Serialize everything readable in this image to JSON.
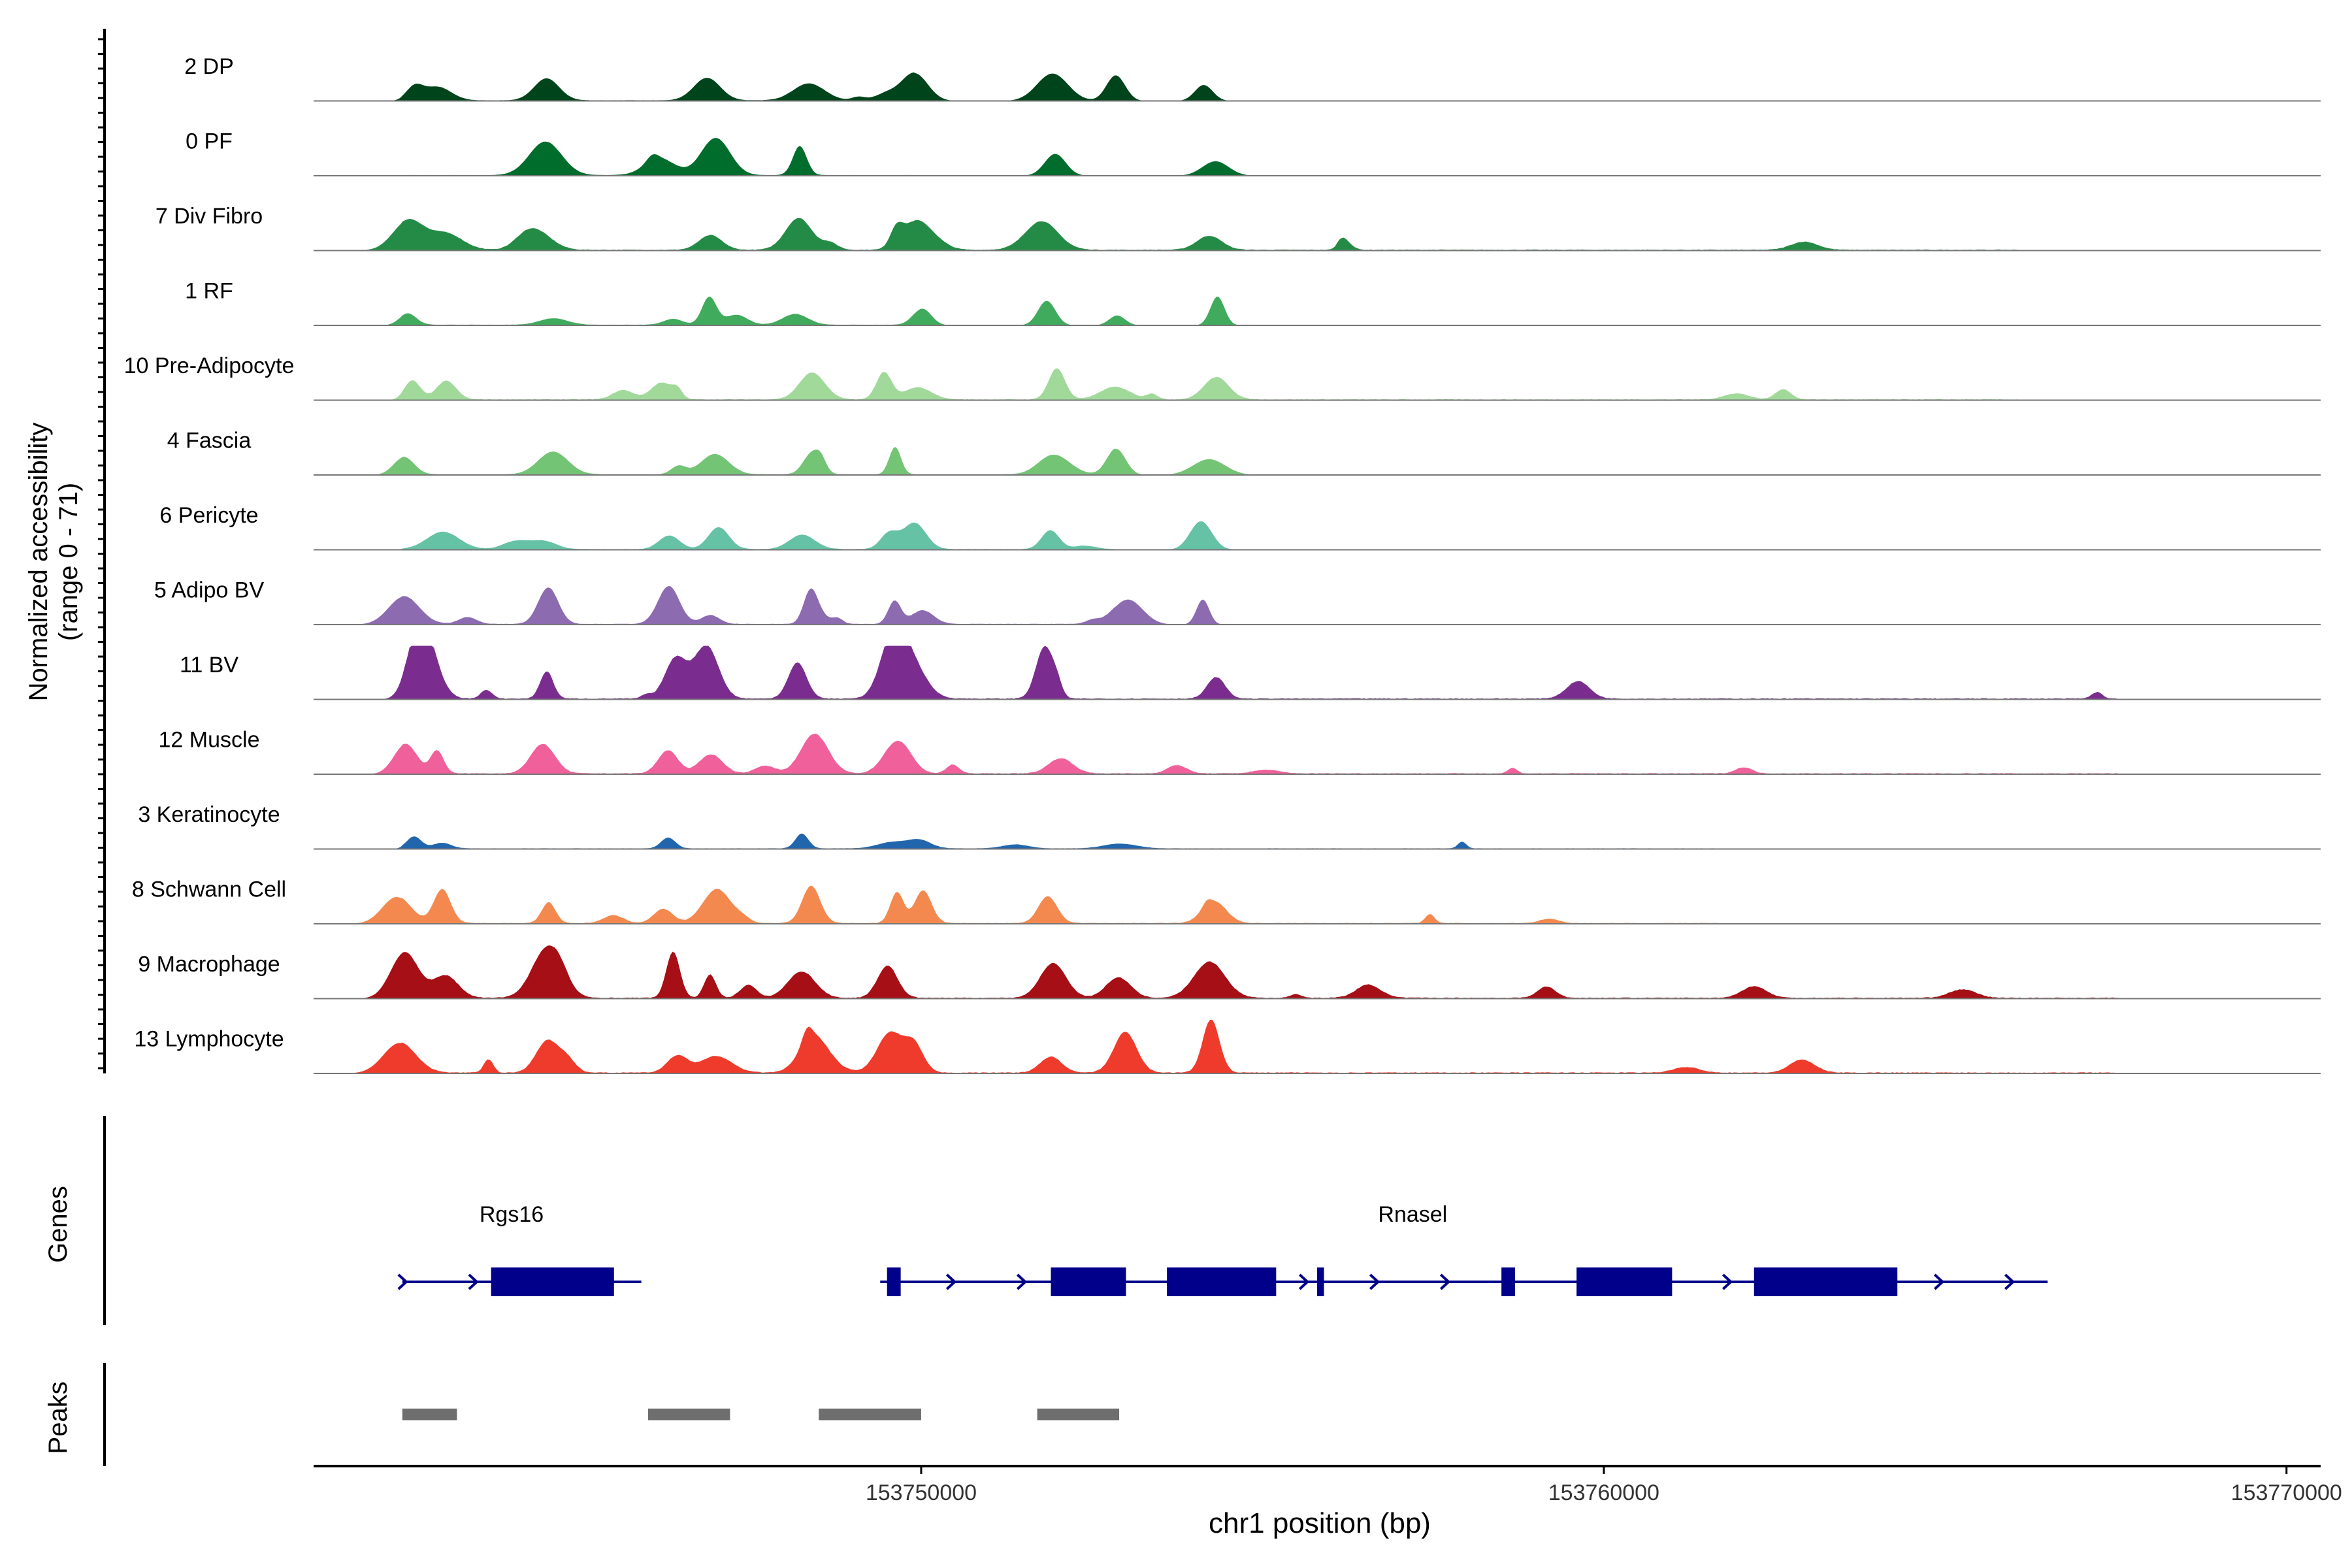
{
  "chart_data": {
    "type": "area",
    "title": "",
    "ylabel_line1": "Normalized accessibility",
    "ylabel_line2": "(range 0 - 71)",
    "y_range": [
      0,
      71
    ],
    "xlabel": "chr1 position (bp)",
    "x_range": [
      153741100,
      153770500
    ],
    "x_ticks": [
      153750000,
      153760000,
      153770000
    ],
    "x_tick_labels": [
      "153750000",
      "153760000",
      "153770000"
    ],
    "genes_label": "Genes",
    "peaks_label": "Peaks",
    "gene_color": "#00008B",
    "peak_color": "#6E6E6E",
    "tracks": [
      {
        "name": "2 DP",
        "color": "#00441B",
        "scale": 0.55,
        "noise": 0.15,
        "extent": 0.3
      },
      {
        "name": "0 PF",
        "color": "#006D2C",
        "scale": 0.65,
        "noise": 0.15,
        "extent": 0.3
      },
      {
        "name": "7 Div Fibro",
        "color": "#238B45",
        "scale": 0.7,
        "noise": 0.4,
        "extent": 0.85
      },
      {
        "name": "1 RF",
        "color": "#41AB5D",
        "scale": 0.55,
        "noise": 0.15,
        "extent": 0.3
      },
      {
        "name": "10 Pre-Adipocyte",
        "color": "#A1D99B",
        "scale": 0.7,
        "noise": 0.35,
        "extent": 0.85
      },
      {
        "name": "4 Fascia",
        "color": "#74C476",
        "scale": 0.55,
        "noise": 0.15,
        "extent": 0.4
      },
      {
        "name": "6 Pericyte",
        "color": "#66C2A4",
        "scale": 0.55,
        "noise": 0.2,
        "extent": 0.4
      },
      {
        "name": "5 Adipo BV",
        "color": "#8C6BB1",
        "scale": 0.75,
        "noise": 0.25,
        "extent": 0.4
      },
      {
        "name": "11 BV",
        "color": "#7A2D8E",
        "scale": 1.0,
        "noise": 0.5,
        "extent": 0.9
      },
      {
        "name": "12 Muscle",
        "color": "#F0609A",
        "scale": 0.75,
        "noise": 0.45,
        "extent": 0.9
      },
      {
        "name": "3 Keratinocyte",
        "color": "#2166AC",
        "scale": 0.4,
        "noise": 0.15,
        "extent": 0.7
      },
      {
        "name": "8 Schwann Cell",
        "color": "#F4894F",
        "scale": 0.75,
        "noise": 0.35,
        "extent": 0.7
      },
      {
        "name": "9 Macrophage",
        "color": "#A50F15",
        "scale": 1.0,
        "noise": 0.5,
        "extent": 0.9
      },
      {
        "name": "13 Lymphocyte",
        "color": "#EF3B2C",
        "scale": 1.0,
        "noise": 0.5,
        "extent": 0.9
      }
    ],
    "genes": [
      {
        "name": "Rgs16",
        "start": 153742400,
        "end": 153745900,
        "strand": "+",
        "exons": [
          [
            153743700,
            153745500
          ]
        ],
        "label_pos": 153744000,
        "label_row": 0
      },
      {
        "name": "Rnasel",
        "start": 153749400,
        "end": 153766500,
        "strand": "+",
        "exons": [
          [
            153749500,
            153749700
          ],
          [
            153751900,
            153753000
          ],
          [
            153753600,
            153755200
          ],
          [
            153755800,
            153755900
          ],
          [
            153758500,
            153758700
          ],
          [
            153759600,
            153761000
          ],
          [
            153762200,
            153764300
          ]
        ],
        "label_pos": 153757200,
        "label_row": 0
      }
    ],
    "peaks": [
      [
        153742400,
        153743200
      ],
      [
        153746000,
        153747200
      ],
      [
        153748500,
        153750000
      ],
      [
        153751700,
        153752900
      ]
    ]
  }
}
